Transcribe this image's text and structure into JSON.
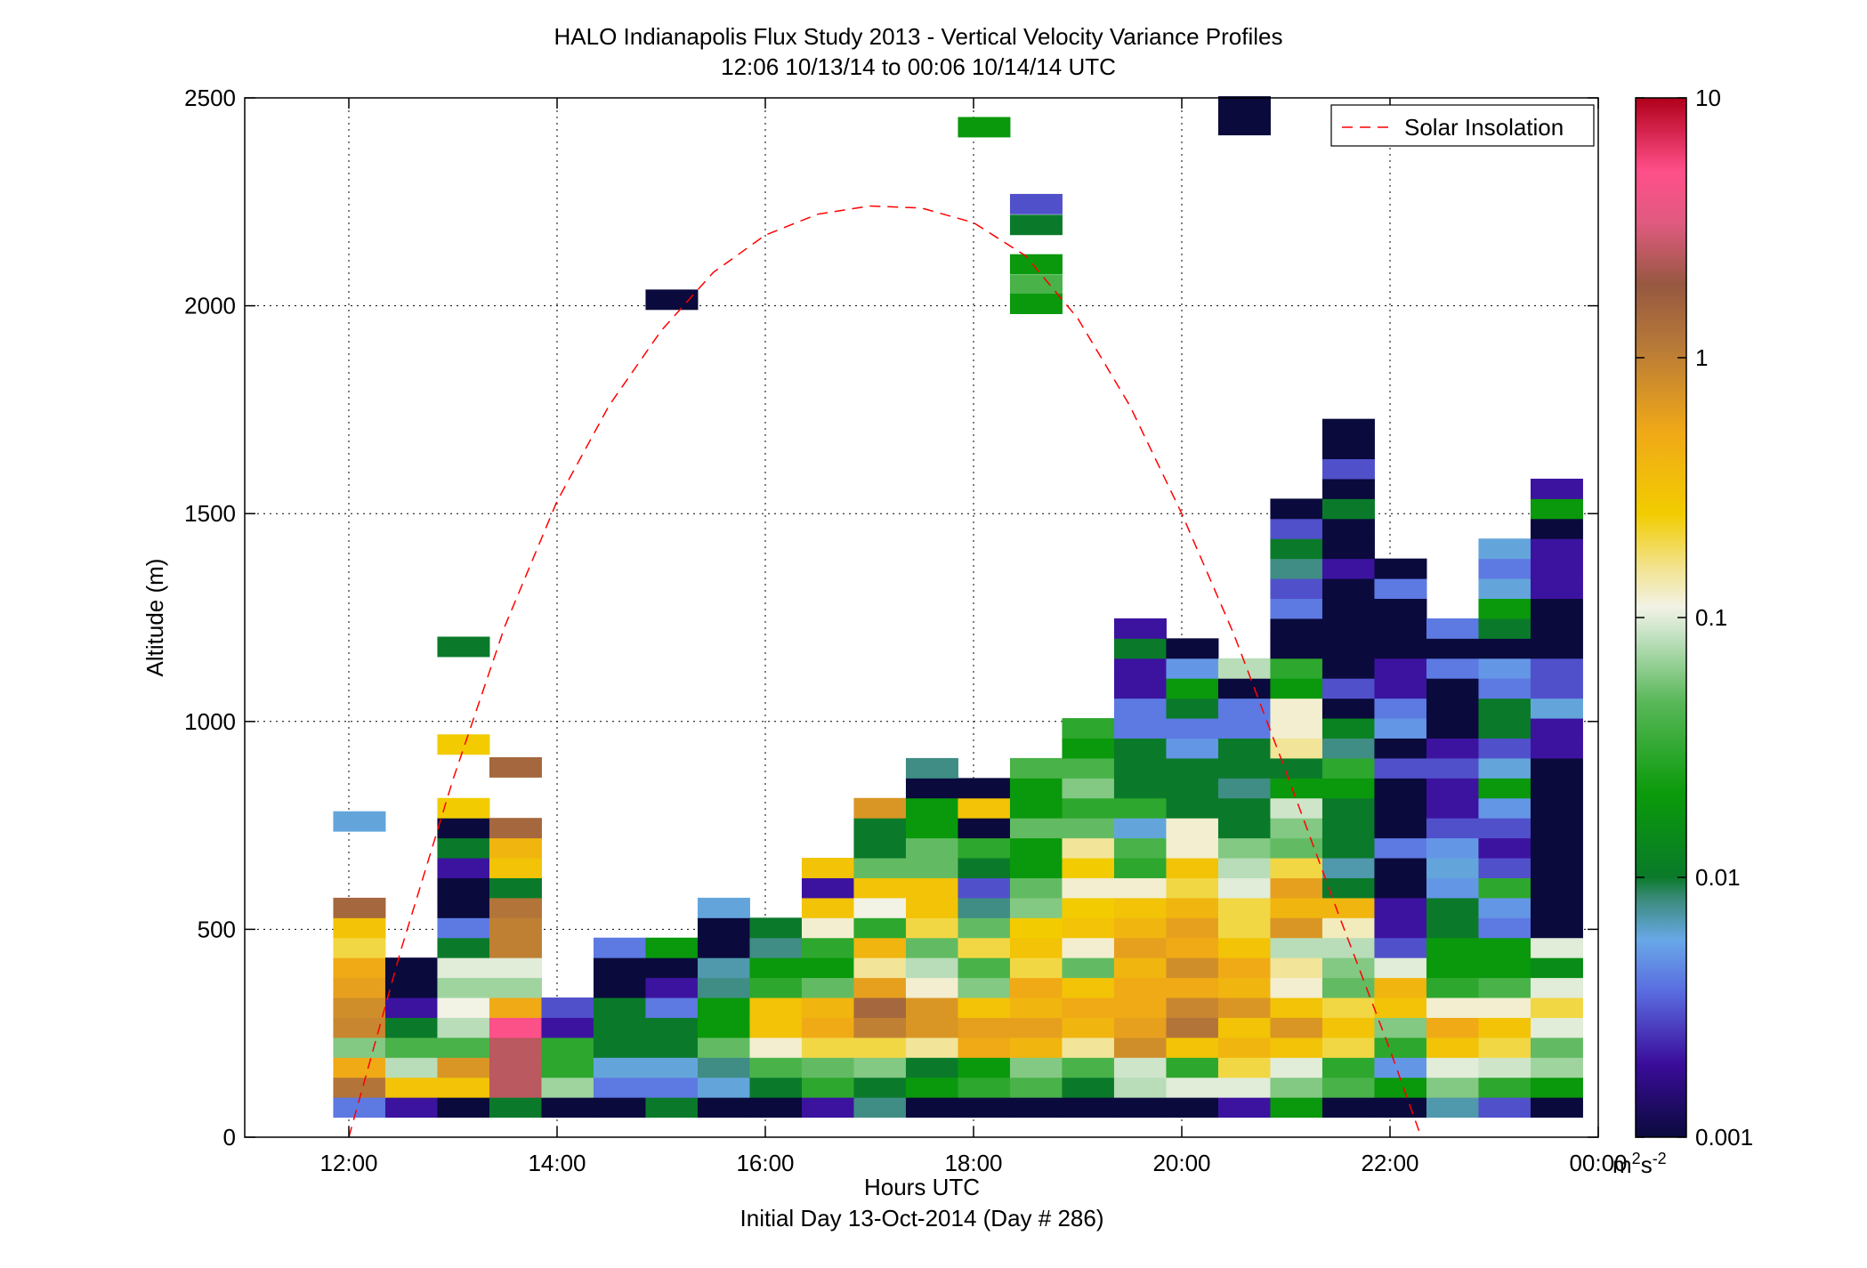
{
  "chart_data": {
    "type": "heatmap",
    "title": "HALO Indianapolis Flux Study 2013 - Vertical Velocity Variance Profiles",
    "subtitle": "12:06 10/13/14 to 00:06 10/14/14  UTC",
    "xlabel": "Hours UTC",
    "xlabel2": "Initial Day 13-Oct-2014 (Day # 286)",
    "ylabel": "Altitude (m)",
    "xlim": [
      11.0,
      24.0
    ],
    "ylim": [
      0,
      2500
    ],
    "x_ticks": [
      12,
      14,
      16,
      18,
      20,
      22,
      24
    ],
    "x_tick_labels": [
      "12:00",
      "14:00",
      "16:00",
      "18:00",
      "20:00",
      "22:00",
      "00:00"
    ],
    "y_ticks": [
      0,
      500,
      1000,
      1500,
      2000,
      2500
    ],
    "y_tick_labels": [
      "0",
      "500",
      "1000",
      "1500",
      "2000",
      "2500"
    ],
    "grid": true,
    "colorbar": {
      "scale": "log",
      "range": [
        0.001,
        10
      ],
      "tick_values": [
        0.001,
        0.01,
        0.1,
        1,
        10
      ],
      "tick_labels": [
        "0.001",
        "0.01",
        "0.1",
        "1",
        "10"
      ],
      "unit_base": "m",
      "unit_exp1": "2",
      "unit_mid": "s",
      "unit_exp2": "-2"
    },
    "time_step_hours": 0.5,
    "altitude_step_m": 48,
    "legend": {
      "position": "top-right",
      "entries": [
        "Solar Insolation"
      ]
    },
    "solar_insolation": {
      "color": "#ff0000",
      "style": "dashed",
      "points": [
        [
          12.0,
          0
        ],
        [
          12.5,
          450
        ],
        [
          13.0,
          860
        ],
        [
          13.5,
          1230
        ],
        [
          14.0,
          1530
        ],
        [
          14.5,
          1760
        ],
        [
          15.0,
          1940
        ],
        [
          15.5,
          2080
        ],
        [
          16.0,
          2170
        ],
        [
          16.5,
          2220
        ],
        [
          17.0,
          2240
        ],
        [
          17.5,
          2235
        ],
        [
          18.0,
          2200
        ],
        [
          18.5,
          2120
        ],
        [
          19.0,
          1970
        ],
        [
          19.5,
          1760
        ],
        [
          20.0,
          1500
        ],
        [
          20.5,
          1210
        ],
        [
          21.0,
          880
        ],
        [
          21.5,
          540
        ],
        [
          22.0,
          210
        ],
        [
          22.3,
          0
        ]
      ]
    },
    "profiles": [
      {
        "t": 12.1,
        "base": 72,
        "values": [
          0.004,
          1.2,
          0.5,
          0.06,
          0.9,
          0.8,
          0.6,
          0.5,
          0.2,
          0.3,
          1.5
        ]
      },
      {
        "t": 12.6,
        "base": 72,
        "values": [
          0.002,
          0.3,
          0.08,
          0.04,
          0.01,
          0.002,
          0.001,
          0.001
        ]
      },
      {
        "t": 13.1,
        "base": 72,
        "values": [
          0.001,
          0.3,
          0.7,
          0.04,
          0.08,
          0.11,
          0.07,
          0.1,
          0.01,
          0.004,
          0.001,
          0.001,
          0.002,
          0.01,
          0.001,
          0.25
        ]
      },
      {
        "t": 13.6,
        "base": 72,
        "values": [
          0.01,
          2.5,
          2.5,
          2.5,
          5.0,
          0.5,
          0.07,
          0.1,
          1.0,
          1.0,
          1.2,
          0.01,
          0.3,
          0.4,
          1.5
        ]
      },
      {
        "t": 14.1,
        "base": 72,
        "values": [
          0.001,
          0.07,
          0.03,
          0.03,
          0.002,
          0.003
        ]
      },
      {
        "t": 14.6,
        "base": 72,
        "values": [
          0.001,
          0.004,
          0.006,
          0.01,
          0.01,
          0.01,
          0.001,
          0.001,
          0.004
        ]
      },
      {
        "t": 15.1,
        "base": 72,
        "values": [
          0.01,
          0.004,
          0.006,
          0.01,
          0.01,
          0.004,
          0.002,
          0.001,
          0.02
        ]
      },
      {
        "t": 15.6,
        "base": 72,
        "values": [
          0.001,
          0.006,
          0.008,
          0.05,
          0.02,
          0.02,
          0.008,
          0.007,
          0.001,
          0.001,
          0.006
        ]
      },
      {
        "t": 16.1,
        "base": 72,
        "values": [
          0.001,
          0.01,
          0.04,
          0.12,
          0.3,
          0.3,
          0.03,
          0.02,
          0.008,
          0.01
        ]
      },
      {
        "t": 16.6,
        "base": 72,
        "values": [
          0.002,
          0.03,
          0.05,
          0.2,
          0.5,
          0.4,
          0.05,
          0.02,
          0.03,
          0.12,
          0.3,
          0.002,
          0.3
        ]
      },
      {
        "t": 17.1,
        "base": 72,
        "values": [
          0.008,
          0.01,
          0.06,
          0.2,
          1.0,
          1.5,
          0.6,
          0.15,
          0.4,
          0.03,
          0.11,
          0.3,
          0.05,
          0.01,
          0.01,
          0.7
        ]
      },
      {
        "t": 17.6,
        "base": 72,
        "values": [
          0.001,
          0.02,
          0.01,
          0.15,
          0.7,
          0.7,
          0.12,
          0.08,
          0.05,
          0.2,
          0.3,
          0.3,
          0.05,
          0.05,
          0.02,
          0.02,
          0.001,
          0.008
        ]
      },
      {
        "t": 18.1,
        "base": 72,
        "values": [
          0.001,
          0.03,
          0.02,
          0.5,
          0.6,
          0.3,
          0.06,
          0.04,
          0.2,
          0.05,
          0.008,
          0.003,
          0.01,
          0.03,
          0.001,
          0.3,
          0.001
        ]
      },
      {
        "t": 18.6,
        "base": 72,
        "values": [
          0.001,
          0.04,
          0.06,
          0.4,
          0.6,
          0.4,
          0.5,
          0.2,
          0.3,
          0.25,
          0.06,
          0.05,
          0.02,
          0.02,
          0.05,
          0.02,
          0.02,
          0.04
        ]
      },
      {
        "t": 19.1,
        "base": 72,
        "values": [
          0.001,
          0.01,
          0.04,
          0.15,
          0.4,
          0.5,
          0.3,
          0.05,
          0.12,
          0.3,
          0.25,
          0.12,
          0.25,
          0.15,
          0.05,
          0.03,
          0.06,
          0.04,
          0.02,
          0.03
        ]
      },
      {
        "t": 19.6,
        "base": 72,
        "values": [
          0.001,
          0.08,
          0.09,
          0.8,
          0.6,
          0.5,
          0.5,
          0.4,
          0.6,
          0.4,
          0.3,
          0.12,
          0.03,
          0.04,
          0.006,
          0.03,
          0.01,
          0.01,
          0.01,
          0.004,
          0.004,
          0.002,
          0.002,
          0.01,
          0.002
        ]
      },
      {
        "t": 20.1,
        "base": 72,
        "values": [
          0.001,
          0.1,
          0.03,
          0.3,
          1.2,
          0.9,
          0.5,
          0.8,
          0.5,
          0.6,
          0.4,
          0.2,
          0.3,
          0.12,
          0.12,
          0.01,
          0.01,
          0.01,
          0.005,
          0.004,
          0.01,
          0.02,
          0.005,
          0.001
        ]
      },
      {
        "t": 20.6,
        "base": 72,
        "values": [
          0.002,
          0.1,
          0.2,
          0.4,
          0.3,
          0.7,
          0.4,
          0.5,
          0.3,
          0.2,
          0.2,
          0.1,
          0.08,
          0.06,
          0.01,
          0.01,
          0.008,
          0.01,
          0.01,
          0.004,
          0.004,
          0.001,
          0.08
        ]
      },
      {
        "t": 21.1,
        "base": 72,
        "values": [
          0.02,
          0.06,
          0.1,
          0.3,
          0.7,
          0.3,
          0.12,
          0.15,
          0.08,
          0.7,
          0.4,
          0.6,
          0.2,
          0.05,
          0.06,
          0.09,
          0.02,
          0.01,
          0.15,
          0.12,
          0.12,
          0.02,
          0.03,
          0.001,
          0.001,
          0.004,
          0.003,
          0.008,
          0.01,
          0.003,
          0.001
        ]
      },
      {
        "t": 21.6,
        "base": 72,
        "values": [
          0.001,
          0.04,
          0.03,
          0.2,
          0.3,
          0.2,
          0.05,
          0.06,
          0.08,
          0.13,
          0.4,
          0.01,
          0.007,
          0.01,
          0.01,
          0.01,
          0.02,
          0.03,
          0.008,
          0.012,
          0.001,
          0.003,
          0.001,
          0.001,
          0.001,
          0.001,
          0.001,
          0.002,
          0.001,
          0.001,
          0.01,
          0.001,
          0.003,
          0.001,
          0.001
        ]
      },
      {
        "t": 22.1,
        "base": 72,
        "values": [
          0.001,
          0.02,
          0.005,
          0.03,
          0.06,
          0.3,
          0.4,
          0.1,
          0.003,
          0.002,
          0.002,
          0.001,
          0.001,
          0.004,
          0.001,
          0.001,
          0.001,
          0.003,
          0.001,
          0.005,
          0.004,
          0.002,
          0.002,
          0.001,
          0.001,
          0.001,
          0.004,
          0.001
        ]
      },
      {
        "t": 22.6,
        "base": 72,
        "values": [
          0.007,
          0.06,
          0.1,
          0.3,
          0.5,
          0.12,
          0.03,
          0.02,
          0.02,
          0.01,
          0.01,
          0.005,
          0.006,
          0.005,
          0.003,
          0.002,
          0.002,
          0.003,
          0.002,
          0.001,
          0.001,
          0.001,
          0.004,
          0.001,
          0.004
        ]
      },
      {
        "t": 23.1,
        "base": 72,
        "values": [
          0.003,
          0.03,
          0.09,
          0.2,
          0.3,
          0.12,
          0.04,
          0.02,
          0.02,
          0.004,
          0.005,
          0.03,
          0.003,
          0.002,
          0.003,
          0.005,
          0.02,
          0.006,
          0.003,
          0.01,
          0.01,
          0.004,
          0.005,
          0.001,
          0.01,
          0.02,
          0.006,
          0.004,
          0.006
        ]
      },
      {
        "t": 23.6,
        "base": 72,
        "values": [
          0.001,
          0.02,
          0.07,
          0.05,
          0.1,
          0.2,
          0.1,
          0.015,
          0.1,
          0.001,
          0.001,
          0.001,
          0.001,
          0.001,
          0.001,
          0.001,
          0.001,
          0.001,
          0.002,
          0.002,
          0.006,
          0.003,
          0.003,
          0.001,
          0.001,
          0.001,
          0.002,
          0.002,
          0.002,
          0.001,
          0.02,
          0.002
        ]
      }
    ],
    "isolated_cells": [
      {
        "t": 12.1,
        "alt": 760,
        "value": 0.006
      },
      {
        "t": 13.1,
        "alt": 1180,
        "value": 0.01
      },
      {
        "t": 13.1,
        "alt": 945,
        "value": 0.25
      },
      {
        "t": 13.6,
        "alt": 890,
        "value": 1.5
      },
      {
        "t": 15.1,
        "alt": 2015,
        "value": 0.001
      },
      {
        "t": 18.1,
        "alt": 2430,
        "value": 0.02
      },
      {
        "t": 18.6,
        "alt": 2245,
        "value": 0.003
      },
      {
        "t": 18.6,
        "alt": 2195,
        "value": 0.01
      },
      {
        "t": 18.6,
        "alt": 2100,
        "value": 0.02
      },
      {
        "t": 18.6,
        "alt": 2050,
        "value": 0.04
      },
      {
        "t": 18.6,
        "alt": 2005,
        "value": 0.02
      },
      {
        "t": 20.6,
        "alt": 2480,
        "value": 0.001
      },
      {
        "t": 20.6,
        "alt": 2435,
        "value": 0.001
      }
    ]
  }
}
